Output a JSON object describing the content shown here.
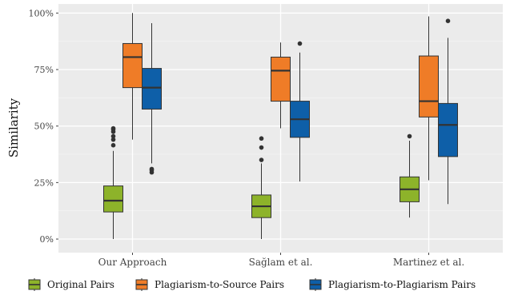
{
  "chart_data": {
    "type": "boxplot",
    "ylabel": "Similarity",
    "xlabel": "",
    "ylim": [
      -0.06,
      1.04
    ],
    "yticks": [
      0,
      0.25,
      0.5,
      0.75,
      1.0
    ],
    "ytick_labels": [
      "0%",
      "25%",
      "50%",
      "75%",
      "100%"
    ],
    "categories": [
      "Our Approach",
      "Sağlam et al.",
      "Martinez et al."
    ],
    "grid": true,
    "legend_position": "bottom",
    "series": [
      {
        "name": "Original Pairs",
        "color": "#8db32a",
        "boxes": [
          {
            "min": 0.0,
            "q1": 0.12,
            "median": 0.17,
            "q3": 0.235,
            "max": 0.39,
            "outliers": [
              0.415,
              0.44,
              0.455,
              0.475,
              0.485,
              0.49
            ]
          },
          {
            "min": 0.0,
            "q1": 0.095,
            "median": 0.145,
            "q3": 0.195,
            "max": 0.335,
            "outliers": [
              0.35,
              0.405,
              0.445
            ]
          },
          {
            "min": 0.095,
            "q1": 0.165,
            "median": 0.22,
            "q3": 0.275,
            "max": 0.435,
            "outliers": [
              0.455
            ]
          }
        ]
      },
      {
        "name": "Plagiarism-to-Source Pairs",
        "color": "#ef7c27",
        "boxes": [
          {
            "min": 0.44,
            "q1": 0.67,
            "median": 0.805,
            "q3": 0.865,
            "max": 1.0,
            "outliers": []
          },
          {
            "min": 0.49,
            "q1": 0.61,
            "median": 0.745,
            "q3": 0.805,
            "max": 0.87,
            "outliers": []
          },
          {
            "min": 0.26,
            "q1": 0.54,
            "median": 0.61,
            "q3": 0.81,
            "max": 0.985,
            "outliers": []
          }
        ]
      },
      {
        "name": "Plagiarism-to-Plagiarism Pairs",
        "color": "#0e5fa8",
        "boxes": [
          {
            "min": 0.335,
            "q1": 0.575,
            "median": 0.67,
            "q3": 0.755,
            "max": 0.955,
            "outliers": [
              0.295,
              0.305,
              0.31
            ]
          },
          {
            "min": 0.255,
            "q1": 0.45,
            "median": 0.53,
            "q3": 0.61,
            "max": 0.825,
            "outliers": [
              0.865
            ]
          },
          {
            "min": 0.155,
            "q1": 0.365,
            "median": 0.505,
            "q3": 0.6,
            "max": 0.89,
            "outliers": [
              0.965
            ]
          }
        ]
      }
    ]
  }
}
